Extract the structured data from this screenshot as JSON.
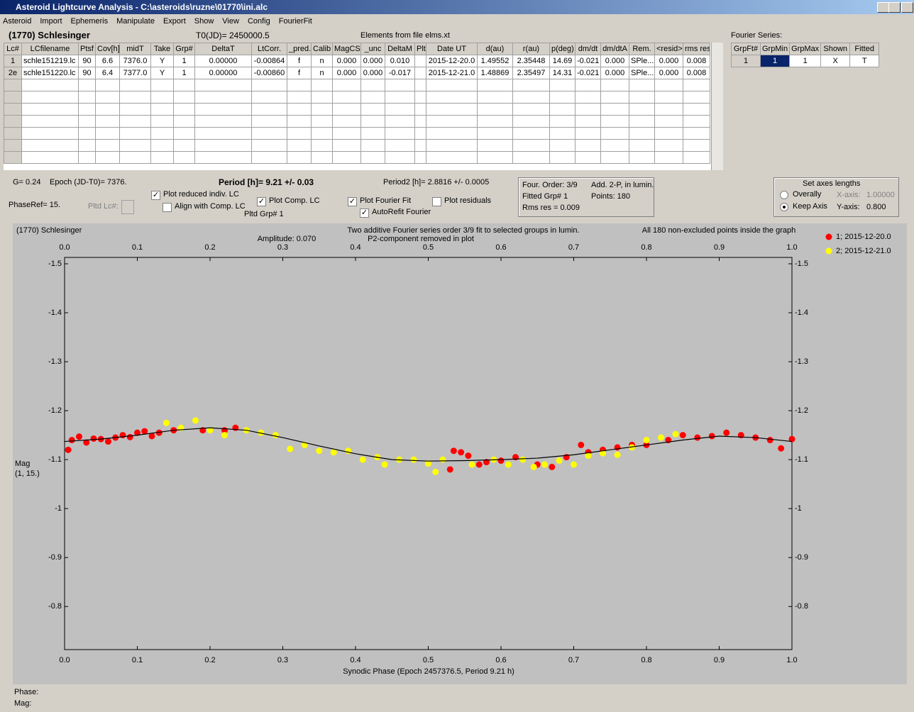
{
  "window": {
    "title": "Asteroid Lightcurve Analysis - C:\\asteroids\\ruzne\\01770\\ini.alc"
  },
  "menu": [
    "Asteroid",
    "Import",
    "Ephemeris",
    "Manipulate",
    "Export",
    "Show",
    "View",
    "Config",
    "FourierFit"
  ],
  "header": {
    "asteroid": "(1770) Schlesinger",
    "t0": "T0(JD)= 2450000.5",
    "elements": "Elements from file elms.xt",
    "fourier_label": "Fourier Series:"
  },
  "table": {
    "columns": [
      "Lc#",
      "LCfilename",
      "Ptsf",
      "Cov[h]",
      "midT",
      "Take",
      "Grp#",
      "DeltaT",
      "LtCorr.",
      "_pred.",
      "Calib",
      "MagCS",
      "_unc",
      "DeltaM",
      "Plt",
      "Date UT",
      "d(au)",
      "r(au)",
      "p(deg)",
      "dm/dt",
      "dm/dtA",
      "Rem.",
      "<resid>",
      "rms res"
    ],
    "rows": [
      [
        "1",
        "schle151219.lc",
        "90",
        "6.6",
        "7376.0",
        "Y",
        "1",
        "0.00000",
        "-0.00864",
        "f",
        "n",
        "0.000",
        "0.000",
        "0.010",
        null,
        "2015-12-20.0",
        "1.49552",
        "2.35448",
        "14.69",
        "-0.021",
        "0.000",
        "SPle...",
        "0.000",
        "0.008"
      ],
      [
        "2e",
        "schle151220.lc",
        "90",
        "6.4",
        "7377.0",
        "Y",
        "1",
        "0.00000",
        "-0.00860",
        "f",
        "n",
        "0.000",
        "0.000",
        "-0.017",
        null,
        "2015-12-21.0",
        "1.48869",
        "2.35497",
        "14.31",
        "-0.021",
        "0.000",
        "SPle...",
        "0.000",
        "0.008"
      ]
    ]
  },
  "fourier_table": {
    "columns": [
      "GrpFt#",
      "GrpMin",
      "GrpMax",
      "Shown",
      "Fitted"
    ],
    "rows": [
      [
        "1",
        "1",
        "1",
        "X",
        "T"
      ]
    ]
  },
  "info": {
    "g": "G= 0.24",
    "epoch": "Epoch (JD-T0)= 7376.",
    "period": "Period [h]= 9.21 +/- 0.03",
    "period2": "Period2 [h]= 2.8816 +/- 0.0005",
    "phaseref": "PhaseRef= 15.",
    "pltd_lc": "Pltd Lc#:",
    "pltd_grp": "Pltd Grp#  1"
  },
  "checkboxes": [
    {
      "label": "Plot reduced indiv. LC",
      "checked": true
    },
    {
      "label": "Align with Comp. LC",
      "checked": false
    },
    {
      "label": "Plot Comp. LC",
      "checked": true
    },
    {
      "label": "Plot Fourier Fit",
      "checked": true
    },
    {
      "label": "AutoRefit Fourier",
      "checked": true
    },
    {
      "label": "Plot residuals",
      "checked": false
    }
  ],
  "fit_box": {
    "order": "Four. Order:  3/9",
    "add": "Add. 2-P, in lumin.",
    "fitted": "Fitted Grp# 1",
    "points": "Points: 180",
    "rms": "Rms res     = 0.009"
  },
  "axes_box": {
    "title": "Set axes lengths",
    "radios": [
      {
        "label": "Overally",
        "selected": false
      },
      {
        "label": "Keep Axis",
        "selected": true
      }
    ],
    "x_label": "X-axis:",
    "x_value": "1.00000",
    "y_label": "Y-axis:",
    "y_value": "0.800"
  },
  "status": {
    "phase": "Phase:",
    "mag": "Mag:"
  },
  "chart_data": {
    "type": "scatter",
    "title": "(1770) Schlesinger",
    "subtitle": "Two additive Fourier series order 3/9 fit to selected groups in lumin.",
    "annotations": [
      "Amplitude: 0.070",
      "P2-component removed in plot",
      "All 180 non-excluded points inside the graph"
    ],
    "x_label": "Synodic Phase (Epoch 2457376.5, Period 9.21 h)",
    "y_label": [
      "Mag",
      "(1, 15.)"
    ],
    "xlim": [
      0,
      1
    ],
    "ylim": [
      -0.712,
      -1.513
    ],
    "xticks": [
      {
        "value": 0,
        "label": "0.0"
      },
      0.1,
      0.2,
      0.3,
      0.4,
      0.5,
      0.6,
      0.7,
      0.8,
      0.9,
      {
        "value": 1,
        "label": "1.0"
      }
    ],
    "yticks": [
      -1.5,
      -1.4,
      -1.3,
      -1.2,
      -1.1,
      -1.0,
      -0.9,
      -0.8
    ],
    "plot_background": "#c0c0c0",
    "series": [
      {
        "name": "1; 2015-12-20.0",
        "color": "#ff0000",
        "x": [
          0.005,
          0.01,
          0.02,
          0.03,
          0.04,
          0.05,
          0.06,
          0.07,
          0.08,
          0.09,
          0.1,
          0.11,
          0.12,
          0.13,
          0.15,
          0.19,
          0.22,
          0.235,
          0.53,
          0.535,
          0.545,
          0.555,
          0.57,
          0.58,
          0.6,
          0.62,
          0.65,
          0.67,
          0.69,
          0.71,
          0.72,
          0.74,
          0.76,
          0.78,
          0.8,
          0.83,
          0.85,
          0.87,
          0.89,
          0.91,
          0.93,
          0.95,
          0.97,
          0.985,
          1.0
        ],
        "values": [
          -1.12,
          -1.14,
          -1.147,
          -1.135,
          -1.143,
          -1.142,
          -1.137,
          -1.145,
          -1.15,
          -1.146,
          -1.155,
          -1.158,
          -1.148,
          -1.155,
          -1.16,
          -1.16,
          -1.16,
          -1.165,
          -1.08,
          -1.118,
          -1.115,
          -1.108,
          -1.09,
          -1.095,
          -1.098,
          -1.105,
          -1.09,
          -1.085,
          -1.105,
          -1.13,
          -1.115,
          -1.12,
          -1.125,
          -1.13,
          -1.13,
          -1.14,
          -1.15,
          -1.145,
          -1.148,
          -1.155,
          -1.15,
          -1.145,
          -1.14,
          -1.123,
          -1.142
        ]
      },
      {
        "name": "2; 2015-12-21.0",
        "color": "#ffff00",
        "x": [
          0.14,
          0.16,
          0.18,
          0.2,
          0.22,
          0.25,
          0.27,
          0.29,
          0.31,
          0.33,
          0.35,
          0.37,
          0.39,
          0.41,
          0.43,
          0.44,
          0.46,
          0.48,
          0.5,
          0.51,
          0.52,
          0.56,
          0.59,
          0.61,
          0.63,
          0.645,
          0.66,
          0.68,
          0.7,
          0.72,
          0.74,
          0.76,
          0.78,
          0.8,
          0.82,
          0.84
        ],
        "values": [
          -1.175,
          -1.165,
          -1.18,
          -1.16,
          -1.15,
          -1.16,
          -1.155,
          -1.15,
          -1.122,
          -1.13,
          -1.118,
          -1.115,
          -1.118,
          -1.1,
          -1.105,
          -1.09,
          -1.1,
          -1.1,
          -1.092,
          -1.075,
          -1.1,
          -1.09,
          -1.1,
          -1.09,
          -1.1,
          -1.085,
          -1.09,
          -1.098,
          -1.09,
          -1.108,
          -1.113,
          -1.11,
          -1.125,
          -1.14,
          -1.145,
          -1.152
        ]
      }
    ],
    "fit_curve": {
      "color": "#000000",
      "x": [
        0,
        0.05,
        0.1,
        0.15,
        0.2,
        0.25,
        0.3,
        0.35,
        0.4,
        0.45,
        0.5,
        0.55,
        0.6,
        0.65,
        0.7,
        0.75,
        0.8,
        0.85,
        0.9,
        0.95,
        1.0
      ],
      "values": [
        -1.137,
        -1.142,
        -1.15,
        -1.16,
        -1.165,
        -1.16,
        -1.145,
        -1.128,
        -1.112,
        -1.1,
        -1.097,
        -1.098,
        -1.1,
        -1.103,
        -1.11,
        -1.12,
        -1.13,
        -1.14,
        -1.148,
        -1.145,
        -1.137
      ]
    }
  }
}
